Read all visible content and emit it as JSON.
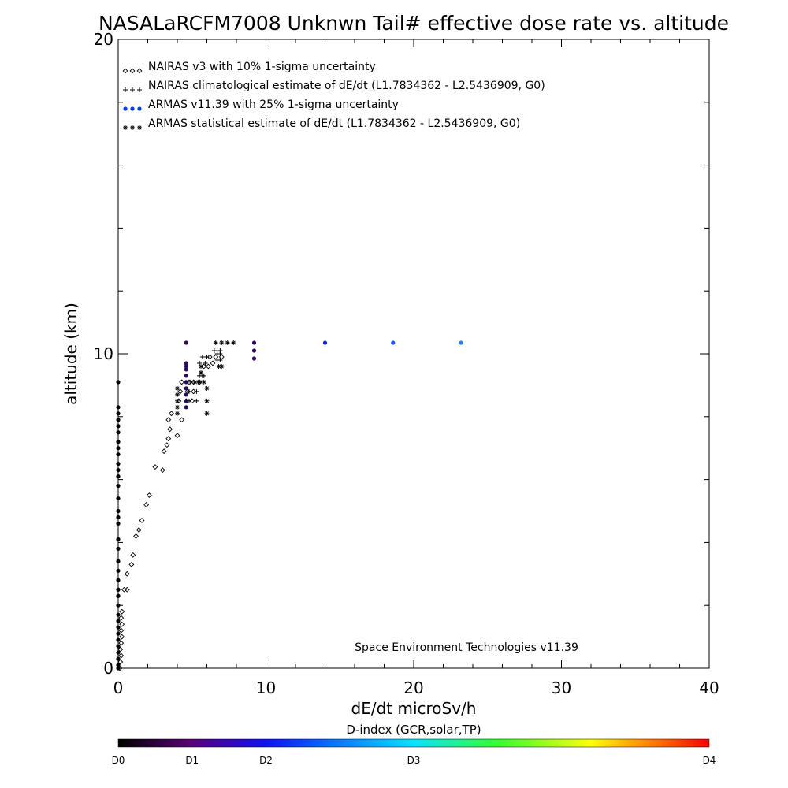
{
  "chart_data": {
    "type": "scatter",
    "title": "NASALaRCFM7008  Unknwn Tail#  effective dose rate vs. altitude",
    "xlabel": "dE/dt microSv/h",
    "ylabel": "altitude (km)",
    "xlim": [
      0,
      40
    ],
    "ylim": [
      0,
      20
    ],
    "x_ticks": [
      0,
      10,
      20,
      30,
      40
    ],
    "y_ticks": [
      0,
      10,
      20
    ],
    "grid": false,
    "legend_placement": "top-left",
    "annotation": "Space Environment Technologies v11.39",
    "series": [
      {
        "name": "NAIRAS v3 with 10% 1-sigma uncertainty",
        "marker": "diamond",
        "color": "#000000",
        "points": [
          [
            0.1,
            0.0
          ],
          [
            0.15,
            0.2
          ],
          [
            0.2,
            0.4
          ],
          [
            0.15,
            0.6
          ],
          [
            0.2,
            0.8
          ],
          [
            0.25,
            1.0
          ],
          [
            0.2,
            1.2
          ],
          [
            0.25,
            1.4
          ],
          [
            0.2,
            1.6
          ],
          [
            0.25,
            1.8
          ],
          [
            0.6,
            2.5
          ],
          [
            0.4,
            2.5
          ],
          [
            0.6,
            3.0
          ],
          [
            0.9,
            3.3
          ],
          [
            1.0,
            3.6
          ],
          [
            1.2,
            4.2
          ],
          [
            1.4,
            4.4
          ],
          [
            1.6,
            4.7
          ],
          [
            1.9,
            5.2
          ],
          [
            2.1,
            5.5
          ],
          [
            2.5,
            6.4
          ],
          [
            3.0,
            6.3
          ],
          [
            3.1,
            6.9
          ],
          [
            3.3,
            7.1
          ],
          [
            3.4,
            7.3
          ],
          [
            3.5,
            7.6
          ],
          [
            4.0,
            7.4
          ],
          [
            3.4,
            7.9
          ],
          [
            3.6,
            8.1
          ],
          [
            4.3,
            7.9
          ],
          [
            4.1,
            8.5
          ],
          [
            4.6,
            8.5
          ],
          [
            5.0,
            8.5
          ],
          [
            4.2,
            8.8
          ],
          [
            4.7,
            8.8
          ],
          [
            5.1,
            8.8
          ],
          [
            4.3,
            9.1
          ],
          [
            4.8,
            9.1
          ],
          [
            5.1,
            9.1
          ],
          [
            5.5,
            9.1
          ],
          [
            5.8,
            9.6
          ],
          [
            6.1,
            9.6
          ],
          [
            6.4,
            9.7
          ],
          [
            6.2,
            9.9
          ],
          [
            6.6,
            9.9
          ],
          [
            7.0,
            9.9
          ]
        ]
      },
      {
        "name": "NAIRAS climatological estimate of dE/dt (L1.7834362 - L2.5436909, G0)",
        "marker": "plus",
        "color": "#000000",
        "points": [
          [
            4.8,
            8.5
          ],
          [
            5.3,
            8.5
          ],
          [
            4.8,
            8.8
          ],
          [
            5.3,
            8.8
          ],
          [
            4.9,
            9.1
          ],
          [
            5.4,
            9.1
          ],
          [
            5.5,
            9.3
          ],
          [
            5.7,
            9.3
          ],
          [
            5.8,
            9.3
          ],
          [
            5.5,
            9.7
          ],
          [
            5.9,
            9.7
          ],
          [
            6.7,
            9.8
          ],
          [
            6.9,
            9.8
          ],
          [
            5.7,
            9.9
          ],
          [
            6.0,
            9.9
          ],
          [
            6.7,
            10.0
          ],
          [
            6.9,
            10.0
          ],
          [
            6.5,
            10.1
          ],
          [
            6.9,
            10.1
          ]
        ]
      },
      {
        "name": "ARMAS v11.39 with 25% 1-sigma uncertainty",
        "marker": "dot",
        "color": "#0a3fe0",
        "points": [
          [
            0.0,
            0.0
          ],
          [
            0.0,
            0.1
          ],
          [
            0.0,
            0.3
          ],
          [
            0.0,
            0.5
          ],
          [
            0.0,
            0.7
          ],
          [
            0.0,
            0.9
          ],
          [
            0.0,
            1.1
          ],
          [
            0.0,
            1.3
          ],
          [
            0.0,
            1.5
          ],
          [
            0.0,
            1.7
          ],
          [
            0.0,
            2.0
          ],
          [
            0.0,
            2.3
          ],
          [
            0.0,
            2.5
          ],
          [
            0.0,
            2.8
          ],
          [
            0.0,
            3.1
          ],
          [
            0.0,
            3.4
          ],
          [
            0.0,
            3.8
          ],
          [
            0.0,
            4.1
          ],
          [
            0.0,
            4.6
          ],
          [
            0.0,
            4.8
          ],
          [
            0.0,
            5.0
          ],
          [
            0.0,
            5.4
          ],
          [
            0.0,
            5.8
          ],
          [
            0.0,
            6.1
          ],
          [
            0.0,
            6.3
          ],
          [
            0.0,
            6.5
          ],
          [
            0.0,
            6.8
          ],
          [
            0.0,
            7.0
          ],
          [
            0.0,
            7.2
          ],
          [
            0.0,
            7.5
          ],
          [
            0.0,
            7.7
          ],
          [
            0.0,
            7.9
          ],
          [
            0.0,
            8.1
          ],
          [
            0.0,
            8.3
          ],
          [
            0.0,
            9.1
          ],
          [
            4.6,
            8.3
          ],
          [
            4.6,
            8.5
          ],
          [
            4.6,
            8.7
          ],
          [
            4.6,
            8.9
          ],
          [
            4.6,
            9.1
          ],
          [
            4.6,
            9.3
          ],
          [
            4.6,
            9.5
          ],
          [
            4.6,
            9.6
          ],
          [
            4.6,
            9.7
          ],
          [
            4.6,
            10.35
          ],
          [
            9.2,
            9.85
          ],
          [
            9.2,
            10.1
          ],
          [
            9.2,
            10.35
          ],
          [
            14.0,
            10.35
          ],
          [
            18.6,
            10.35
          ],
          [
            23.2,
            10.35
          ]
        ],
        "point_colors": {
          "low": "#000000",
          "d1": "#2a0a5c",
          "d2": "#0b27d8",
          "d2b": "#1654f0",
          "d3": "#2080f0"
        }
      },
      {
        "name": "ARMAS statistical estimate of dE/dt (L1.7834362 - L2.5436909, G0)",
        "marker": "asterisk",
        "color": "#000000",
        "points": [
          [
            4.0,
            8.1
          ],
          [
            4.0,
            8.3
          ],
          [
            4.0,
            8.5
          ],
          [
            4.0,
            8.7
          ],
          [
            4.0,
            8.9
          ],
          [
            6.0,
            8.1
          ],
          [
            6.0,
            8.5
          ],
          [
            6.0,
            8.9
          ],
          [
            5.2,
            9.1
          ],
          [
            5.5,
            9.1
          ],
          [
            5.8,
            9.1
          ],
          [
            5.6,
            9.4
          ],
          [
            5.6,
            9.6
          ],
          [
            6.8,
            9.6
          ],
          [
            7.0,
            9.6
          ],
          [
            6.6,
            10.35
          ],
          [
            7.0,
            10.35
          ],
          [
            7.4,
            10.35
          ],
          [
            7.8,
            10.35
          ]
        ]
      }
    ],
    "colorbar": {
      "title": "D-index (GCR,solar,TP)",
      "labels": [
        "D0",
        "D1",
        "D2",
        "D3",
        "D4"
      ],
      "label_positions": [
        0.0,
        0.125,
        0.25,
        0.5,
        1.0
      ],
      "colors": [
        "#000000",
        "#5a0078",
        "#1010ff",
        "#00e5ff",
        "#30ff30",
        "#ffff00",
        "#ff8000",
        "#ff0000"
      ]
    }
  }
}
